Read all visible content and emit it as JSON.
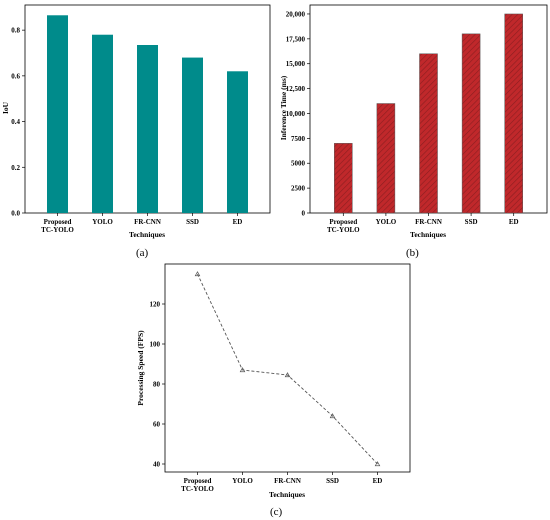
{
  "chart_data": [
    {
      "type": "bar",
      "panel_label": "(a)",
      "categories": [
        "Proposed\nTC-YOLO",
        "YOLO",
        "FR-CNN",
        "SSD",
        "ED"
      ],
      "values": [
        0.865,
        0.78,
        0.735,
        0.68,
        0.62
      ],
      "xlabel": "Techniques",
      "ylabel": "IoU",
      "ylim": [
        0,
        0.91
      ],
      "yticks": [
        0.0,
        0.2,
        0.4,
        0.6,
        0.8
      ],
      "ytick_labels": [
        "0.0",
        "0.2",
        "0.4",
        "0.6",
        "0.8"
      ],
      "color": "#008B8B",
      "grid": false
    },
    {
      "type": "bar",
      "panel_label": "(b)",
      "categories": [
        "Proposed\nTC-YOLO",
        "YOLO",
        "FR-CNN",
        "SSD",
        "ED"
      ],
      "values": [
        7000,
        11000,
        16000,
        18000,
        20000
      ],
      "xlabel": "Techniques",
      "ylabel": "Inference Time (ms)",
      "ylim": [
        0,
        20900
      ],
      "yticks": [
        0,
        2500,
        5000,
        7500,
        10000,
        12500,
        15000,
        17500,
        20000
      ],
      "ytick_labels": [
        "0",
        "2500",
        "5000",
        "7500",
        "10,000",
        "12,500",
        "15,000",
        "17,500",
        "20,000"
      ],
      "color": "#C0282B",
      "hatch": "diagonal",
      "grid": false
    },
    {
      "type": "line",
      "panel_label": "(c)",
      "categories": [
        "Proposed\nTC-YOLO",
        "YOLO",
        "FR-CNN",
        "SSD",
        "ED"
      ],
      "values": [
        135,
        87,
        84.5,
        64,
        40
      ],
      "xlabel": "Techniques",
      "ylabel": "Processing Speed (FPS)",
      "ylim": [
        36,
        140
      ],
      "yticks": [
        40,
        60,
        80,
        100,
        120
      ],
      "ytick_labels": [
        "40",
        "60",
        "80",
        "100",
        "120"
      ],
      "line_style": "dashed",
      "marker": "triangle",
      "color": "#555555",
      "grid": false
    }
  ]
}
